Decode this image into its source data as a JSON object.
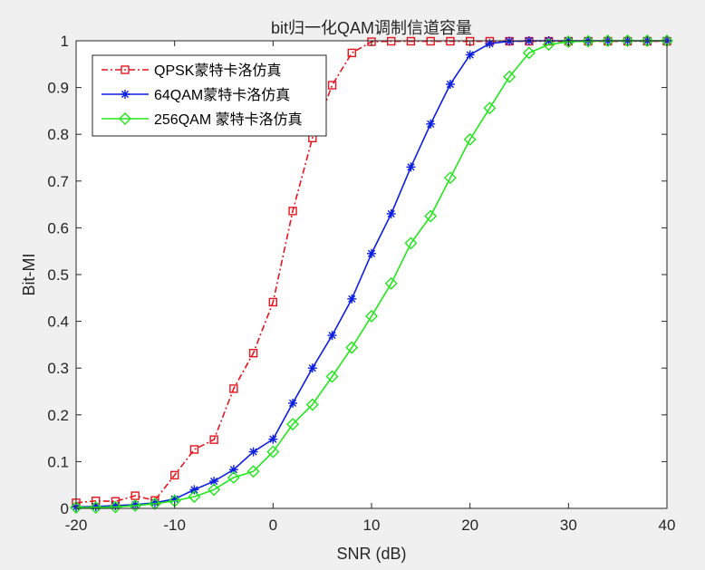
{
  "chart_data": {
    "type": "line",
    "title": "bit归一化QAM调制信道容量",
    "xlabel": "SNR (dB)",
    "ylabel": "Bit-MI",
    "xlim": [
      -20,
      40
    ],
    "ylim": [
      0,
      1
    ],
    "xticks": [
      -20,
      -10,
      0,
      10,
      20,
      30,
      40
    ],
    "xtick_labels": [
      "-20",
      "-10",
      "0",
      "10",
      "20",
      "30",
      "40"
    ],
    "yticks": [
      0,
      0.1,
      0.2,
      0.3,
      0.4,
      0.5,
      0.6,
      0.7,
      0.8,
      0.9,
      1
    ],
    "ytick_labels": [
      "0",
      "0.1",
      "0.2",
      "0.3",
      "0.4",
      "0.5",
      "0.6",
      "0.7",
      "0.8",
      "0.9",
      "1"
    ],
    "grid": false,
    "legend_position": "top-left",
    "x": [
      -20,
      -18,
      -16,
      -14,
      -12,
      -10,
      -8,
      -6,
      -4,
      -2,
      0,
      2,
      4,
      6,
      8,
      10,
      12,
      14,
      16,
      18,
      20,
      22,
      24,
      26,
      28,
      30,
      32,
      34,
      36,
      38,
      40
    ],
    "series": [
      {
        "name": "QPSK蒙特卡洛仿真",
        "color": "#e8141e",
        "line_style": "dashdot",
        "marker": "square",
        "values": [
          0.012,
          0.016,
          0.015,
          0.027,
          0.017,
          0.071,
          0.126,
          0.147,
          0.256,
          0.332,
          0.441,
          0.636,
          0.792,
          0.905,
          0.974,
          0.998,
          0.999,
          0.999,
          0.999,
          0.999,
          0.999,
          0.999,
          0.999,
          0.999,
          0.999,
          0.999,
          0.999,
          0.999,
          0.999,
          0.999,
          0.999
        ]
      },
      {
        "name": "64QAM蒙特卡洛仿真",
        "color": "#0c1ee0",
        "line_style": "solid",
        "marker": "asterisk",
        "values": [
          0.003,
          0.004,
          0.006,
          0.008,
          0.012,
          0.02,
          0.04,
          0.058,
          0.083,
          0.121,
          0.148,
          0.225,
          0.3,
          0.37,
          0.448,
          0.545,
          0.63,
          0.73,
          0.822,
          0.907,
          0.97,
          0.994,
          0.999,
          1.0,
          1.0,
          1.0,
          1.0,
          1.0,
          1.0,
          1.0,
          1.0
        ]
      },
      {
        "name": "256QAM 蒙特卡洛仿真",
        "color": "#22e81a",
        "line_style": "solid",
        "marker": "diamond",
        "values": [
          0.002,
          0.002,
          0.003,
          0.006,
          0.01,
          0.016,
          0.025,
          0.04,
          0.066,
          0.079,
          0.121,
          0.18,
          0.222,
          0.282,
          0.344,
          0.411,
          0.481,
          0.567,
          0.625,
          0.707,
          0.789,
          0.856,
          0.923,
          0.974,
          0.992,
          0.998,
          0.999,
          1.0,
          1.0,
          1.0,
          1.0
        ]
      }
    ]
  }
}
